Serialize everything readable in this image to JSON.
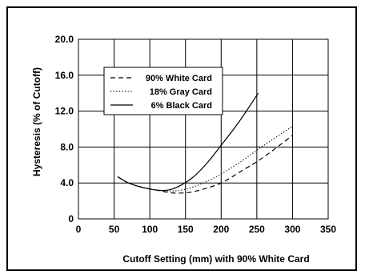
{
  "chart_data": {
    "type": "line",
    "title": "",
    "xlabel": "Cutoff Setting (mm) with 90% White Card",
    "ylabel": "Hysteresis (% of Cutoff)",
    "xlim": [
      0,
      350
    ],
    "ylim": [
      0,
      20
    ],
    "x_ticks": [
      "0",
      "50",
      "100",
      "150",
      "200",
      "250",
      "300",
      "350"
    ],
    "y_ticks": [
      "0",
      "4.0",
      "8.0",
      "12.0",
      "16.0",
      "20.0"
    ],
    "grid": true,
    "legend_position": "top-left",
    "series": [
      {
        "name": "90% White Card",
        "style": "dashed",
        "color": "#000000",
        "points": [
          [
            55,
            4.7
          ],
          [
            70,
            4.0
          ],
          [
            90,
            3.5
          ],
          [
            110,
            3.2
          ],
          [
            130,
            2.9
          ],
          [
            150,
            2.9
          ],
          [
            170,
            3.2
          ],
          [
            200,
            4.0
          ],
          [
            230,
            5.4
          ],
          [
            260,
            6.9
          ],
          [
            300,
            9.3
          ]
        ]
      },
      {
        "name": "18% Gray Card",
        "style": "dotted",
        "color": "#000000",
        "points": [
          [
            55,
            4.7
          ],
          [
            70,
            4.0
          ],
          [
            90,
            3.5
          ],
          [
            110,
            3.2
          ],
          [
            130,
            3.1
          ],
          [
            150,
            3.3
          ],
          [
            175,
            4.0
          ],
          [
            200,
            5.0
          ],
          [
            230,
            6.5
          ],
          [
            260,
            8.2
          ],
          [
            300,
            10.3
          ]
        ]
      },
      {
        "name": "6% Black Card",
        "style": "solid",
        "color": "#000000",
        "points": [
          [
            55,
            4.7
          ],
          [
            70,
            4.0
          ],
          [
            90,
            3.5
          ],
          [
            110,
            3.2
          ],
          [
            125,
            3.2
          ],
          [
            140,
            3.6
          ],
          [
            160,
            4.6
          ],
          [
            180,
            6.2
          ],
          [
            200,
            8.2
          ],
          [
            225,
            10.8
          ],
          [
            252,
            14.0
          ]
        ]
      }
    ]
  }
}
